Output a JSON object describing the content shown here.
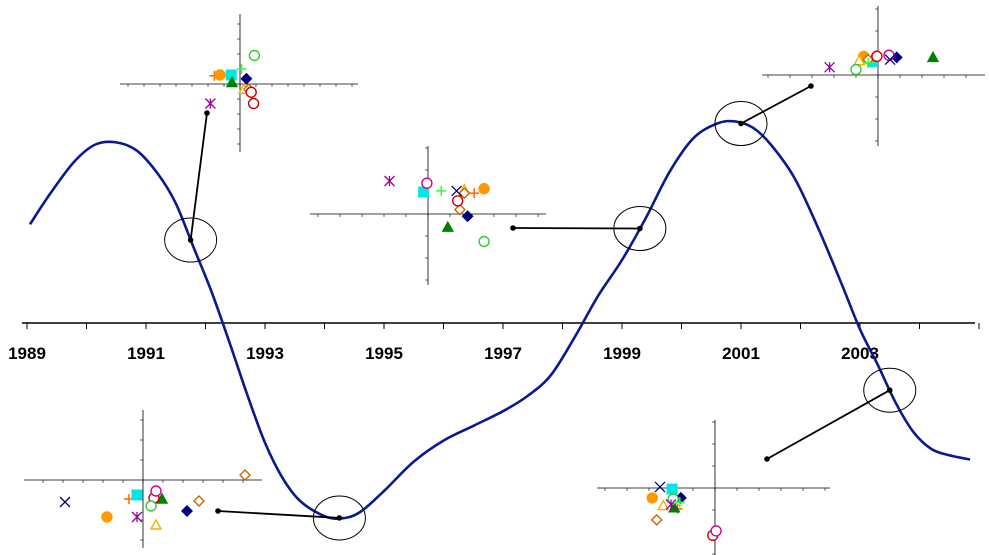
{
  "chart_data": {
    "type": "line",
    "x_tick_labels": [
      "1989",
      "1991",
      "1993",
      "1995",
      "1997",
      "1999",
      "2001",
      "2003"
    ],
    "x_range": [
      1989,
      2005
    ],
    "series": [
      {
        "color": "#0a1a8c",
        "points": [
          [
            1989.05,
            0.47
          ],
          [
            1989.4,
            0.62
          ],
          [
            1989.8,
            0.77
          ],
          [
            1990.15,
            0.85
          ],
          [
            1990.5,
            0.86
          ],
          [
            1990.85,
            0.82
          ],
          [
            1991.2,
            0.71
          ],
          [
            1991.5,
            0.57
          ],
          [
            1991.8,
            0.36
          ],
          [
            1992.1,
            0.15
          ],
          [
            1992.4,
            -0.09
          ],
          [
            1992.7,
            -0.34
          ],
          [
            1993.0,
            -0.57
          ],
          [
            1993.3,
            -0.74
          ],
          [
            1993.6,
            -0.85
          ],
          [
            1994.0,
            -0.92
          ],
          [
            1994.3,
            -0.93
          ],
          [
            1994.6,
            -0.9
          ],
          [
            1995.0,
            -0.8
          ],
          [
            1995.5,
            -0.66
          ],
          [
            1996.0,
            -0.56
          ],
          [
            1996.5,
            -0.49
          ],
          [
            1997.0,
            -0.42
          ],
          [
            1997.4,
            -0.35
          ],
          [
            1997.8,
            -0.25
          ],
          [
            1998.2,
            -0.07
          ],
          [
            1998.6,
            0.13
          ],
          [
            1999.0,
            0.3
          ],
          [
            1999.4,
            0.5
          ],
          [
            1999.8,
            0.72
          ],
          [
            2000.2,
            0.88
          ],
          [
            2000.6,
            0.95
          ],
          [
            2000.9,
            0.96
          ],
          [
            2001.2,
            0.93
          ],
          [
            2001.5,
            0.85
          ],
          [
            2001.9,
            0.69
          ],
          [
            2002.3,
            0.45
          ],
          [
            2002.7,
            0.18
          ],
          [
            2003.0,
            -0.03
          ],
          [
            2003.3,
            -0.2
          ],
          [
            2003.6,
            -0.38
          ],
          [
            2003.9,
            -0.52
          ],
          [
            2004.2,
            -0.6
          ],
          [
            2004.5,
            -0.63
          ],
          [
            2004.85,
            -0.65
          ]
        ]
      }
    ],
    "callouts": [
      {
        "year": 1991.75,
        "inset": "tl"
      },
      {
        "year": 1994.25,
        "inset": "bl"
      },
      {
        "year": 1999.3,
        "inset": "mid"
      },
      {
        "year": 2001.0,
        "inset": "tr"
      },
      {
        "year": 2003.5,
        "inset": "br"
      }
    ],
    "inset_marker_legend": [
      {
        "shape": "plus",
        "color": "#ff6600"
      },
      {
        "shape": "circle",
        "color": "#ff9900",
        "filled": true
      },
      {
        "shape": "square",
        "color": "#00e5e5",
        "filled": true
      },
      {
        "shape": "diamond",
        "color": "#000080",
        "filled": true
      },
      {
        "shape": "triangle",
        "color": "#008000",
        "filled": true
      },
      {
        "shape": "triangle",
        "color": "#ffaa00",
        "filled": false
      },
      {
        "shape": "diamond",
        "color": "#cc6600",
        "filled": false
      },
      {
        "shape": "circle",
        "color": "#cc0000",
        "filled": false
      },
      {
        "shape": "circle",
        "color": "#cc0099",
        "filled": false
      },
      {
        "shape": "circle",
        "color": "#33cc33",
        "filled": false
      },
      {
        "shape": "star",
        "color": "#990099"
      },
      {
        "shape": "x",
        "color": "#000080"
      },
      {
        "shape": "plus",
        "color": "#33ff33"
      }
    ],
    "insets": {
      "tl": [
        {
          "m": 0,
          "x": -1.6,
          "y": 0.55
        },
        {
          "m": 1,
          "x": -1.25,
          "y": 0.6
        },
        {
          "m": 2,
          "x": -0.55,
          "y": 0.6
        },
        {
          "m": 3,
          "x": 0.4,
          "y": 0.35
        },
        {
          "m": 4,
          "x": -0.5,
          "y": 0.1
        },
        {
          "m": 5,
          "x": 0.25,
          "y": -0.35
        },
        {
          "m": 6,
          "x": 0.55,
          "y": -0.35
        },
        {
          "m": 7,
          "x": 0.7,
          "y": -0.55
        },
        {
          "m": 7,
          "x": 0.85,
          "y": -1.3
        },
        {
          "m": 9,
          "x": 0.9,
          "y": 1.9
        },
        {
          "m": 10,
          "x": -1.85,
          "y": -1.3
        },
        {
          "m": 12,
          "x": 0.1,
          "y": 1.0
        }
      ],
      "bl": [
        {
          "m": 0,
          "x": -0.7,
          "y": -0.95
        },
        {
          "m": 1,
          "x": -1.8,
          "y": -1.85
        },
        {
          "m": 2,
          "x": -0.3,
          "y": -0.75
        },
        {
          "m": 3,
          "x": 2.2,
          "y": -1.55
        },
        {
          "m": 4,
          "x": 0.95,
          "y": -0.95
        },
        {
          "m": 5,
          "x": 0.65,
          "y": -2.25
        },
        {
          "m": 6,
          "x": 2.8,
          "y": -1.05
        },
        {
          "m": 6,
          "x": 5.1,
          "y": 0.25
        },
        {
          "m": 7,
          "x": 0.55,
          "y": -0.9
        },
        {
          "m": 8,
          "x": 0.65,
          "y": -0.55
        },
        {
          "m": 9,
          "x": 0.4,
          "y": -1.3
        },
        {
          "m": 10,
          "x": -0.3,
          "y": -1.85
        },
        {
          "m": 11,
          "x": -3.9,
          "y": -1.1
        }
      ],
      "mid": [
        {
          "m": 0,
          "x": 2.1,
          "y": 0.95
        },
        {
          "m": 1,
          "x": 2.55,
          "y": 1.15
        },
        {
          "m": 2,
          "x": -0.2,
          "y": 1.0
        },
        {
          "m": 3,
          "x": 1.8,
          "y": -0.1
        },
        {
          "m": 4,
          "x": 0.9,
          "y": -0.6
        },
        {
          "m": 5,
          "x": 1.65,
          "y": 1.1
        },
        {
          "m": 6,
          "x": 1.45,
          "y": 0.2
        },
        {
          "m": 6,
          "x": 1.65,
          "y": 0.95
        },
        {
          "m": 7,
          "x": 1.35,
          "y": 0.6
        },
        {
          "m": 8,
          "x": -0.05,
          "y": 1.4
        },
        {
          "m": 9,
          "x": 2.55,
          "y": -1.25
        },
        {
          "m": 10,
          "x": -1.75,
          "y": 1.5
        },
        {
          "m": 11,
          "x": 1.3,
          "y": 1.05
        },
        {
          "m": 12,
          "x": 0.6,
          "y": 1.05
        }
      ],
      "tr": [
        {
          "m": 0,
          "x": -0.1,
          "y": 0.9
        },
        {
          "m": 1,
          "x": -0.65,
          "y": 0.85
        },
        {
          "m": 2,
          "x": -0.25,
          "y": 0.6
        },
        {
          "m": 3,
          "x": 0.85,
          "y": 0.8
        },
        {
          "m": 4,
          "x": 2.5,
          "y": 0.8
        },
        {
          "m": 5,
          "x": -0.85,
          "y": 0.65
        },
        {
          "m": 6,
          "x": -0.45,
          "y": 0.7
        },
        {
          "m": 7,
          "x": -0.05,
          "y": 0.85
        },
        {
          "m": 8,
          "x": 0.5,
          "y": 0.9
        },
        {
          "m": 9,
          "x": -1.0,
          "y": 0.25
        },
        {
          "m": 10,
          "x": -2.2,
          "y": 0.35
        },
        {
          "m": 11,
          "x": 0.55,
          "y": 0.7
        },
        {
          "m": 12,
          "x": -0.45,
          "y": 0.55
        }
      ],
      "br": [
        {
          "m": 0,
          "x": -1.7,
          "y": -0.95
        },
        {
          "m": 1,
          "x": -2.85,
          "y": -0.45
        },
        {
          "m": 2,
          "x": -1.95,
          "y": -0.05
        },
        {
          "m": 3,
          "x": -1.55,
          "y": -0.45
        },
        {
          "m": 4,
          "x": -1.85,
          "y": -0.9
        },
        {
          "m": 5,
          "x": -2.35,
          "y": -0.8
        },
        {
          "m": 6,
          "x": -2.65,
          "y": -1.45
        },
        {
          "m": 7,
          "x": -0.1,
          "y": -2.15
        },
        {
          "m": 8,
          "x": 0.05,
          "y": -1.95
        },
        {
          "m": 9,
          "x": -1.9,
          "y": -0.5
        },
        {
          "m": 10,
          "x": -2.0,
          "y": -0.75
        },
        {
          "m": 11,
          "x": -2.5,
          "y": 0.05
        },
        {
          "m": 12,
          "x": -1.6,
          "y": -0.65
        }
      ]
    }
  }
}
